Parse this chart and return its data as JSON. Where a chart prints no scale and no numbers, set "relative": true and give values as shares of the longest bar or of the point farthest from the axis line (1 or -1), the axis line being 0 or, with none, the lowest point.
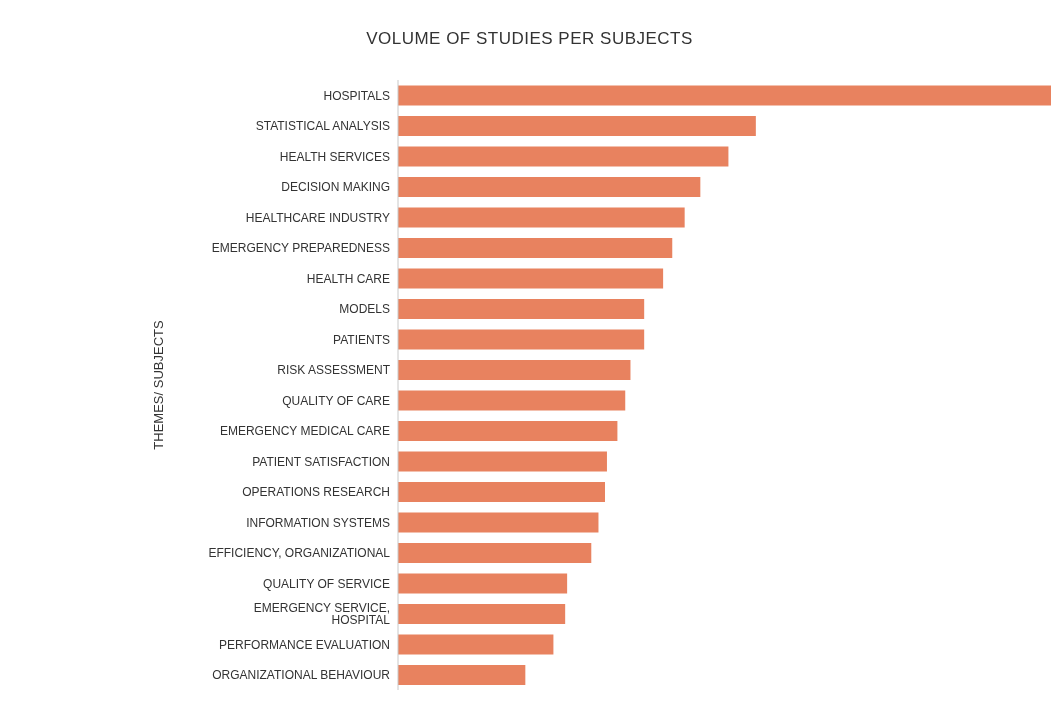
{
  "chart_data": {
    "type": "bar",
    "title": "VOLUME OF STUDIES PER SUBJECTS",
    "ylabel": "THEMES/ SUBJECTS",
    "orientation": "horizontal",
    "relative": true,
    "color": "#e8825f",
    "categories": [
      "HOSPITALS",
      "STATISTICAL ANALYSIS",
      "HEALTH SERVICES",
      "DECISION MAKING",
      "HEALTHCARE INDUSTRY",
      "EMERGENCY PREPAREDNESS",
      "HEALTH CARE",
      "MODELS",
      "PATIENTS",
      "RISK ASSESSMENT",
      "QUALITY OF CARE",
      "EMERGENCY MEDICAL CARE",
      "PATIENT SATISFACTION",
      "OPERATIONS RESEARCH",
      "INFORMATION SYSTEMS",
      "EFFICIENCY, ORGANIZATIONAL",
      "QUALITY OF SERVICE",
      "EMERGENCY SERVICE, HOSPITAL",
      "PERFORMANCE EVALUATION",
      "ORGANIZATIONAL BEHAVIOUR"
    ],
    "values": [
      1,
      0.548,
      0.506,
      0.463,
      0.439,
      0.42,
      0.406,
      0.377,
      0.377,
      0.356,
      0.348,
      0.336,
      0.32,
      0.317,
      0.307,
      0.296,
      0.259,
      0.256,
      0.238,
      0.195
    ],
    "grid": false,
    "legend": false
  }
}
